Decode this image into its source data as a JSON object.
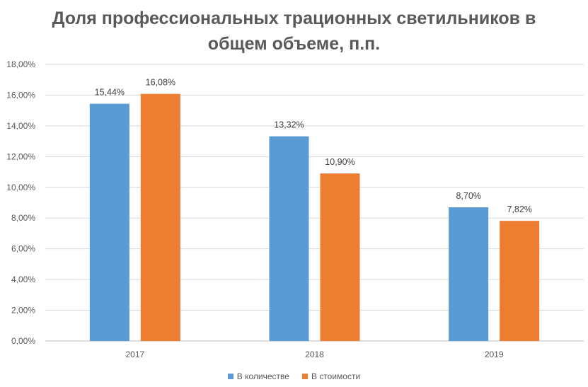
{
  "chart_data": {
    "type": "bar",
    "title_lines": [
      "Доля профессиональных трационных светильников в",
      "общем объеме, п.п."
    ],
    "categories": [
      "2017",
      "2018",
      "2019"
    ],
    "series": [
      {
        "name": "В количестве",
        "color": "#5B9BD5",
        "values": [
          15.44,
          13.32,
          8.7
        ],
        "labels": [
          "15,44%",
          "13,32%",
          "8,70%"
        ]
      },
      {
        "name": "В стоимости",
        "color": "#ED7D31",
        "values": [
          16.08,
          10.9,
          7.82
        ],
        "labels": [
          "16,08%",
          "10,90%",
          "7,82%"
        ]
      }
    ],
    "ylim": [
      0,
      18
    ],
    "y_ticks": [
      0,
      2,
      4,
      6,
      8,
      10,
      12,
      14,
      16,
      18
    ],
    "y_tick_labels": [
      "0,00%",
      "2,00%",
      "4,00%",
      "6,00%",
      "8,00%",
      "10,00%",
      "12,00%",
      "14,00%",
      "16,00%",
      "18,00%"
    ],
    "grid": true,
    "legend_position": "bottom"
  }
}
